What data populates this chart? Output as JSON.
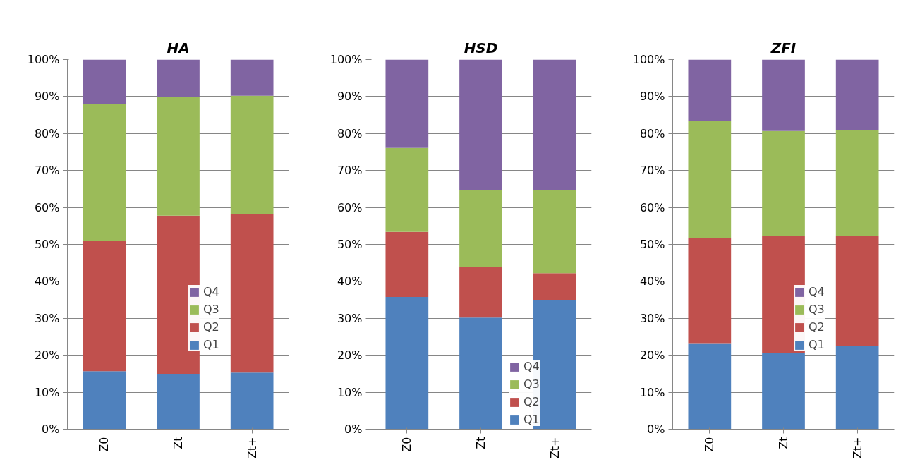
{
  "chart_data": [
    {
      "type": "bar",
      "stacked": true,
      "title": "HA",
      "categories": [
        "Z0",
        "Zt",
        "Zt+"
      ],
      "ylim": [
        0,
        100
      ],
      "yticks": [
        {
          "value": 0,
          "label": "0%"
        },
        {
          "value": 10,
          "label": "10%"
        },
        {
          "value": 20,
          "label": "20%"
        },
        {
          "value": 30,
          "label": "30%"
        },
        {
          "value": 40,
          "label": "40%"
        },
        {
          "value": 50,
          "label": "50%"
        },
        {
          "value": 60,
          "label": "60%"
        },
        {
          "value": 70,
          "label": "70%"
        },
        {
          "value": 80,
          "label": "80%"
        },
        {
          "value": 90,
          "label": "90%"
        },
        {
          "value": 100,
          "label": "100%"
        }
      ],
      "grid": "y",
      "legend": "right",
      "series": [
        {
          "name": "Q1",
          "color": "#4f81bd",
          "values": [
            15.7,
            15.0,
            15.3
          ]
        },
        {
          "name": "Q2",
          "color": "#c0504d",
          "values": [
            35.2,
            42.8,
            43.0
          ]
        },
        {
          "name": "Q3",
          "color": "#9bbb59",
          "values": [
            37.1,
            32.2,
            31.9
          ]
        },
        {
          "name": "Q4",
          "color": "#8064a2",
          "values": [
            12.0,
            10.0,
            9.8
          ]
        }
      ]
    },
    {
      "type": "bar",
      "stacked": true,
      "title": "HSD",
      "categories": [
        "Z0",
        "Zt",
        "Zt+"
      ],
      "ylim": [
        0,
        100
      ],
      "yticks": [
        {
          "value": 0,
          "label": "0%"
        },
        {
          "value": 10,
          "label": "10%"
        },
        {
          "value": 20,
          "label": "20%"
        },
        {
          "value": 30,
          "label": "30%"
        },
        {
          "value": 40,
          "label": "40%"
        },
        {
          "value": 50,
          "label": "50%"
        },
        {
          "value": 60,
          "label": "60%"
        },
        {
          "value": 70,
          "label": "70%"
        },
        {
          "value": 80,
          "label": "80%"
        },
        {
          "value": 90,
          "label": "90%"
        },
        {
          "value": 100,
          "label": "100%"
        }
      ],
      "grid": "y",
      "legend": "bottom right",
      "series": [
        {
          "name": "Q1",
          "color": "#4f81bd",
          "values": [
            35.8,
            30.2,
            35.0
          ]
        },
        {
          "name": "Q2",
          "color": "#c0504d",
          "values": [
            17.6,
            13.6,
            7.2
          ]
        },
        {
          "name": "Q3",
          "color": "#9bbb59",
          "values": [
            22.7,
            21.0,
            22.6
          ]
        },
        {
          "name": "Q4",
          "color": "#8064a2",
          "values": [
            23.9,
            35.2,
            35.2
          ]
        }
      ]
    },
    {
      "type": "bar",
      "stacked": true,
      "title": "ZFI",
      "categories": [
        "Z0",
        "Zt",
        "Zt+"
      ],
      "ylim": [
        0,
        100
      ],
      "yticks": [
        {
          "value": 0,
          "label": "0%"
        },
        {
          "value": 10,
          "label": "10%"
        },
        {
          "value": 20,
          "label": "20%"
        },
        {
          "value": 30,
          "label": "30%"
        },
        {
          "value": 40,
          "label": "40%"
        },
        {
          "value": 50,
          "label": "50%"
        },
        {
          "value": 60,
          "label": "60%"
        },
        {
          "value": 70,
          "label": "70%"
        },
        {
          "value": 80,
          "label": "80%"
        },
        {
          "value": 90,
          "label": "90%"
        },
        {
          "value": 100,
          "label": "100%"
        }
      ],
      "grid": "y",
      "legend": "right",
      "series": [
        {
          "name": "Q1",
          "color": "#4f81bd",
          "values": [
            23.3,
            20.7,
            22.5
          ]
        },
        {
          "name": "Q2",
          "color": "#c0504d",
          "values": [
            28.4,
            31.7,
            29.9
          ]
        },
        {
          "name": "Q3",
          "color": "#9bbb59",
          "values": [
            31.8,
            28.3,
            28.6
          ]
        },
        {
          "name": "Q4",
          "color": "#8064a2",
          "values": [
            16.5,
            19.3,
            19.0
          ]
        }
      ]
    }
  ]
}
